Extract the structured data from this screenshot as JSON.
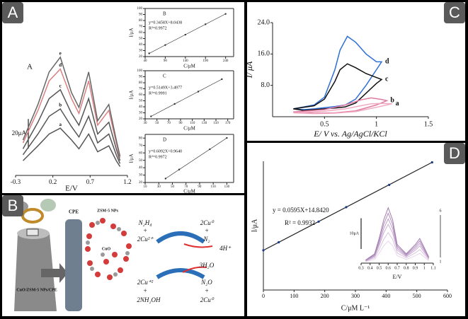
{
  "panel_labels": [
    "A",
    "B",
    "C",
    "D"
  ],
  "chart_data": [
    {
      "type": "line",
      "title": "A",
      "xlabel": "E/V",
      "x": [
        -0.2,
        0,
        0.15,
        0.3,
        0.45,
        0.55,
        0.68,
        0.8,
        0.95,
        1.05,
        1.1
      ],
      "series": [
        {
          "name": "a",
          "color": "#555555",
          "values": [
            10,
            20,
            28,
            32,
            24,
            18,
            28,
            16,
            20,
            10,
            6
          ]
        },
        {
          "name": "b",
          "color": "#555555",
          "values": [
            14,
            28,
            40,
            45,
            33,
            26,
            40,
            22,
            28,
            14,
            8
          ]
        },
        {
          "name": "c",
          "color": "#555555",
          "values": [
            18,
            36,
            52,
            58,
            42,
            34,
            52,
            28,
            36,
            18,
            10
          ]
        },
        {
          "name": "d",
          "color": "#d98080",
          "values": [
            22,
            44,
            64,
            72,
            52,
            42,
            64,
            34,
            44,
            22,
            12
          ]
        },
        {
          "name": "e",
          "color": "#666666",
          "values": [
            24,
            48,
            70,
            80,
            56,
            46,
            70,
            37,
            48,
            24,
            13
          ]
        }
      ],
      "xlim": [
        -0.3,
        1.2
      ],
      "xticks": [
        -0.3,
        0.2,
        0.7,
        1.2
      ],
      "ylim": [
        0,
        90
      ],
      "scale_bar": {
        "value": 20,
        "label": "20μA"
      }
    },
    {
      "type": "scatter",
      "title": "B",
      "xlabel": "C/μM",
      "ylabel": "I/μA",
      "equation": "y=0.3458X+8.0438",
      "r2": "R²=0.9972",
      "x": [
        50,
        90,
        140,
        190,
        240
      ],
      "values": [
        25.3,
        39.2,
        56.4,
        73.7,
        91.0
      ],
      "xlim": [
        40,
        260
      ],
      "xticks": [
        40,
        90,
        140,
        190,
        240
      ],
      "ylim": [
        20,
        100
      ],
      "yticks": [
        20,
        30,
        40,
        50,
        60,
        70,
        80,
        90,
        100
      ]
    },
    {
      "type": "scatter",
      "title": "C",
      "xlabel": "C/μM",
      "ylabel": "I/μA",
      "equation": "y=0.5149X+3.4977",
      "r2": "R²=0.9991",
      "x": [
        40,
        80,
        120,
        160
      ],
      "values": [
        24.1,
        44.7,
        65.3,
        85.9
      ],
      "xlim": [
        30,
        180
      ],
      "xticks": [
        30,
        50,
        70,
        90,
        110,
        130,
        150,
        170
      ],
      "ylim": [
        20,
        100
      ],
      "yticks": [
        20,
        30,
        40,
        50,
        60,
        70,
        80,
        90,
        100
      ]
    },
    {
      "type": "scatter",
      "title": "D",
      "xlabel": "C/μM",
      "ylabel": "I/μA",
      "equation": "y=0.6092X+0.9640",
      "r2": "R²=0.9972",
      "x": [
        40,
        60,
        105,
        130
      ],
      "values": [
        25.3,
        37.5,
        64.9,
        80.2
      ],
      "xlim": [
        10,
        140
      ],
      "xticks": [
        10,
        30,
        50,
        70,
        90,
        110,
        130
      ],
      "ylim": [
        20,
        85
      ],
      "yticks": [
        20,
        30,
        40,
        50,
        60,
        70,
        80
      ]
    },
    {
      "type": "line",
      "xlabel": "E/ V vs. Ag/AgCl/KCl",
      "ylabel": "I/ μA",
      "series": [
        {
          "name": "d",
          "color": "#2f6fd6",
          "x": [
            0.2,
            0.4,
            0.5,
            0.6,
            0.65,
            0.72,
            0.8,
            0.9,
            1.0,
            1.05,
            1.0,
            0.9,
            0.8,
            0.7,
            0.6,
            0.5,
            0.4,
            0.3,
            0.2
          ],
          "values": [
            2,
            3,
            5,
            12,
            17,
            20.5,
            19,
            16,
            14,
            14,
            12,
            8,
            4.5,
            3,
            2.6,
            2.3,
            2,
            1.8,
            2
          ]
        },
        {
          "name": "c",
          "color": "#111111",
          "x": [
            0.2,
            0.4,
            0.5,
            0.6,
            0.65,
            0.72,
            0.8,
            0.9,
            1.0,
            1.05,
            1.0,
            0.9,
            0.8,
            0.7,
            0.6,
            0.5,
            0.4,
            0.3,
            0.2
          ],
          "values": [
            2,
            2.8,
            4.5,
            9,
            12,
            13.5,
            12.5,
            11,
            10,
            9.5,
            8.5,
            6,
            3.5,
            2.5,
            2.2,
            2,
            1.8,
            1.6,
            2
          ]
        },
        {
          "name": "b",
          "color": "#e07aa0",
          "x": [
            0.2,
            0.5,
            0.7,
            0.85,
            0.95,
            1.05,
            1.1,
            1.0,
            0.8,
            0.6,
            0.4,
            0.2
          ],
          "values": [
            1.2,
            1.8,
            3,
            4.3,
            4.8,
            4.4,
            4.1,
            3,
            1.5,
            1,
            0.9,
            1.2
          ]
        },
        {
          "name": "a",
          "color": "#f0a8c0",
          "x": [
            0.2,
            0.5,
            0.7,
            0.85,
            0.95,
            1.05,
            1.15,
            1.0,
            0.8,
            0.6,
            0.4,
            0.2
          ],
          "values": [
            1,
            1.4,
            2,
            2.8,
            3.3,
            3.4,
            3.3,
            2.4,
            1.3,
            0.9,
            0.8,
            1
          ]
        }
      ],
      "xlim": [
        0,
        1.5
      ],
      "xticks": [
        0.5,
        1,
        1.5
      ],
      "ylim": [
        0,
        24
      ],
      "yticks": [
        {
          "value": 8,
          "label": "8.0"
        },
        {
          "value": 16,
          "label": "16.0"
        },
        {
          "value": 24,
          "label": "24.0"
        }
      ]
    },
    {
      "type": "scatter",
      "xlabel": "C/μM L⁻¹",
      "ylabel": "I/μA",
      "equation": "y = 0.0595X+14.8420",
      "r2": "R² = 0.9932",
      "x": [
        0,
        50,
        180,
        270,
        410,
        550
      ],
      "values": [
        14.8,
        17.8,
        25.5,
        30.9,
        39.2,
        47.6
      ],
      "xlim": [
        0,
        600
      ],
      "xticks": [
        0,
        100,
        200,
        300,
        400,
        500,
        600
      ],
      "ylim": [
        0,
        48
      ]
    },
    {
      "type": "line",
      "xlabel": "E/V",
      "x": [
        0.35,
        0.45,
        0.5,
        0.55,
        0.6,
        0.65,
        0.7,
        0.8,
        0.9,
        0.95,
        1.0,
        1.05
      ],
      "series": [
        {
          "color": "#e6d8ea",
          "values": [
            0.5,
            1.2,
            3.2,
            5.6,
            7.2,
            5.6,
            2.4,
            1.2,
            2.4,
            3.2,
            2,
            0.8
          ]
        },
        {
          "color": "#d9c4e0",
          "values": [
            0.6,
            1.7,
            4.4,
            7.7,
            9.9,
            7.7,
            3.3,
            1.7,
            3.3,
            4.4,
            2.8,
            1.1
          ]
        },
        {
          "color": "#cbb0d4",
          "values": [
            0.7,
            2.1,
            5.6,
            9.8,
            12.6,
            9.8,
            4.2,
            2.1,
            4.2,
            5.6,
            3.5,
            1.4
          ]
        },
        {
          "color": "#bf9ec9",
          "values": [
            0.8,
            2.4,
            6.4,
            11.2,
            14.4,
            11.2,
            4.8,
            2.4,
            4.8,
            6.4,
            4,
            1.6
          ]
        },
        {
          "color": "#b08cbc",
          "values": [
            0.9,
            2.7,
            7.2,
            12.6,
            16.2,
            12.6,
            5.4,
            2.7,
            5.4,
            7.2,
            4.5,
            1.8
          ]
        },
        {
          "color": "#a07aad",
          "values": [
            1,
            3,
            8,
            14,
            18,
            14,
            6,
            3,
            6,
            8,
            5,
            2
          ]
        }
      ],
      "xlim": [
        0.3,
        1.1
      ],
      "xticks": [
        0.3,
        0.4,
        0.5,
        0.6,
        0.7,
        0.8,
        0.9,
        1,
        1.1
      ],
      "ylim": [
        0,
        20
      ],
      "scale_bar": {
        "value": 10,
        "label": "10μA"
      },
      "annotations": [
        "6",
        "1"
      ]
    }
  ],
  "diagram": {
    "texts": [
      "CPE",
      "ZSM-5 NPs",
      "CuO",
      "CuO/ZSM-5 NPs/CPE",
      "N₂H₄",
      "+",
      "2Cu²⁺",
      "2Cu⁰",
      "+",
      "N₂",
      "4H⁺",
      "3H₂O",
      "2Cu⁺²",
      "+",
      "2NH₂OH",
      "N₂O",
      "+",
      "2Cu⁰"
    ]
  }
}
